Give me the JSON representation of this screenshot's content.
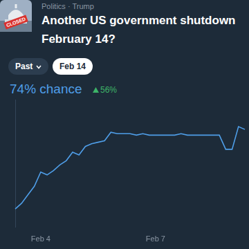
{
  "header": {
    "breadcrumb": "Politics · Trump",
    "icon_text": "CLOSED",
    "title_lines": [
      "Another US government shutdown",
      "February 14?"
    ]
  },
  "buttons": [
    {
      "label": "Past",
      "selected": false
    },
    {
      "label": "Feb 14",
      "selected": true
    }
  ],
  "headline": {
    "chance": "74% chance",
    "change": "56%"
  },
  "chart_data": {
    "type": "line",
    "categories": [
      null,
      null,
      null,
      null,
      "Feb 4",
      null,
      null,
      null,
      null,
      null,
      null,
      null,
      null,
      null,
      null,
      null,
      null,
      null,
      null,
      null,
      null,
      null,
      "Feb 7",
      null,
      null,
      null,
      null,
      null,
      null,
      null,
      null,
      null,
      null,
      null,
      null,
      null,
      null
    ],
    "values": [
      18,
      22,
      28,
      34,
      44,
      42,
      45,
      49,
      52,
      58,
      56,
      62,
      64,
      65,
      66,
      72,
      71,
      71,
      71,
      70,
      71,
      70,
      70,
      70,
      70,
      70,
      71,
      70,
      70,
      70,
      70,
      70,
      70,
      60,
      60,
      76,
      74
    ],
    "color": "#4f9ee8",
    "ylim": [
      5,
      95
    ],
    "tick_labels": "x",
    "grid": false
  }
}
